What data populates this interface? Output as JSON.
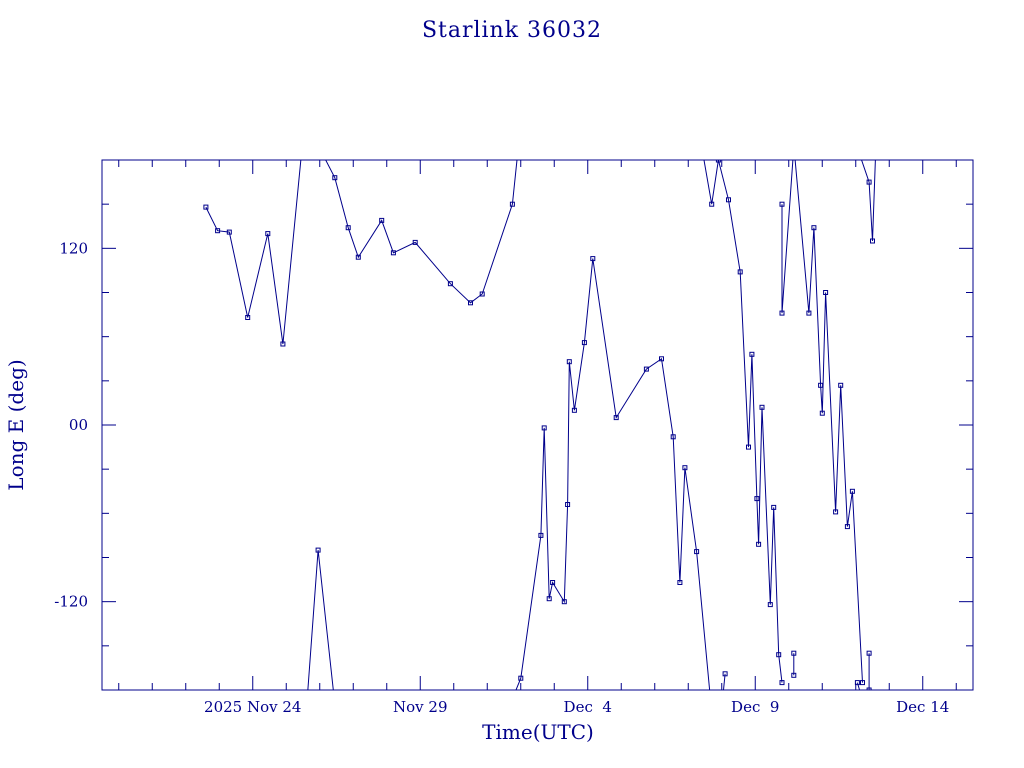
{
  "colors": {
    "ink": "#00008b",
    "background": "#ffffff"
  },
  "chart_data": {
    "type": "line",
    "title": "Starlink 36032",
    "xlabel": "Time(UTC)",
    "ylabel": "Long E (deg)",
    "x_unit": "days",
    "x_tick_labels": [
      {
        "value": 24,
        "label": "2025 Nov 24"
      },
      {
        "value": 29,
        "label": "Nov 29"
      },
      {
        "value": 34,
        "label": "Dec  4"
      },
      {
        "value": 39,
        "label": "Dec  9"
      },
      {
        "value": 44,
        "label": "Dec 14"
      }
    ],
    "x_minor_ticks": [
      20,
      21,
      22,
      23,
      25,
      26,
      27,
      28,
      30,
      31,
      32,
      33,
      35,
      36,
      37,
      38,
      40,
      41,
      42,
      43,
      45
    ],
    "y_tick_labels": [
      {
        "value": 120,
        "label": "120"
      },
      {
        "value": 0,
        "label": "00"
      },
      {
        "value": -120,
        "label": "-120"
      }
    ],
    "y_minor_ticks": [
      -150,
      -90,
      -60,
      -30,
      30,
      60,
      90,
      150
    ],
    "xlim": [
      19.5,
      45.5
    ],
    "ylim": [
      -180,
      180
    ],
    "grid": false,
    "legend": "none",
    "marker": "square",
    "series": [
      {
        "segments": [
          [
            [
              22.6,
              148
            ],
            [
              22.95,
              132
            ],
            [
              23.3,
              131
            ],
            [
              23.85,
              73
            ],
            [
              24.45,
              130
            ],
            [
              24.9,
              55
            ],
            [
              25.5,
              195
            ]
          ],
          [
            [
              25.5,
              -225
            ],
            [
              25.95,
              -85
            ],
            [
              26.5,
              -200
            ]
          ],
          [
            [
              25.95,
              190
            ],
            [
              26.45,
              168
            ],
            [
              26.85,
              134
            ],
            [
              27.15,
              114
            ],
            [
              27.85,
              139
            ],
            [
              28.2,
              117
            ],
            [
              28.85,
              124
            ],
            [
              29.9,
              96
            ],
            [
              30.5,
              83
            ],
            [
              30.85,
              89
            ],
            [
              31.75,
              150
            ],
            [
              32.0,
              205
            ]
          ],
          [
            [
              31.5,
              -200
            ],
            [
              32.0,
              -172
            ],
            [
              32.6,
              -75
            ],
            [
              32.7,
              -2
            ],
            [
              32.85,
              -118
            ],
            [
              32.95,
              -107
            ],
            [
              33.3,
              -120
            ],
            [
              33.4,
              -54
            ],
            [
              33.45,
              43
            ],
            [
              33.6,
              10
            ],
            [
              33.9,
              56
            ],
            [
              34.15,
              113
            ],
            [
              34.85,
              5
            ],
            [
              35.75,
              38
            ],
            [
              36.2,
              45
            ],
            [
              36.55,
              -8
            ],
            [
              36.75,
              -107
            ],
            [
              36.9,
              -29
            ],
            [
              37.25,
              -86
            ],
            [
              37.7,
              -195
            ]
          ],
          [
            [
              37.2,
              215
            ],
            [
              37.7,
              150
            ],
            [
              37.9,
              180
            ],
            [
              38.2,
              153
            ],
            [
              38.55,
              104
            ],
            [
              38.8,
              -15
            ],
            [
              38.9,
              48
            ],
            [
              39.05,
              -50
            ],
            [
              39.1,
              -81
            ],
            [
              39.2,
              12
            ],
            [
              39.45,
              -122
            ],
            [
              39.55,
              -56
            ],
            [
              39.7,
              -156
            ],
            [
              39.8,
              -175
            ]
          ],
          [
            [
              37.9,
              -215
            ],
            [
              38.1,
              -169
            ]
          ],
          [
            [
              39.8,
              150
            ],
            [
              39.8,
              76
            ],
            [
              40.2,
              205
            ]
          ],
          [
            [
              40.15,
              -170
            ],
            [
              40.15,
              -155
            ]
          ],
          [
            [
              39.9,
              225
            ],
            [
              40.15,
              190
            ],
            [
              40.6,
              76
            ],
            [
              40.75,
              134
            ],
            [
              40.95,
              27
            ],
            [
              41.0,
              8
            ],
            [
              41.1,
              90
            ],
            [
              41.4,
              -59
            ],
            [
              41.55,
              27
            ],
            [
              41.75,
              -69
            ],
            [
              41.9,
              -45
            ],
            [
              42.2,
              -175
            ]
          ],
          [
            [
              42.05,
              -175
            ],
            [
              42.2,
              -187
            ]
          ],
          [
            [
              41.8,
              205
            ],
            [
              42.4,
              165
            ],
            [
              42.5,
              125
            ],
            [
              42.6,
              190
            ]
          ],
          [
            [
              42.2,
              -190
            ],
            [
              42.4,
              -180
            ],
            [
              42.4,
              -155
            ]
          ]
        ]
      }
    ]
  }
}
